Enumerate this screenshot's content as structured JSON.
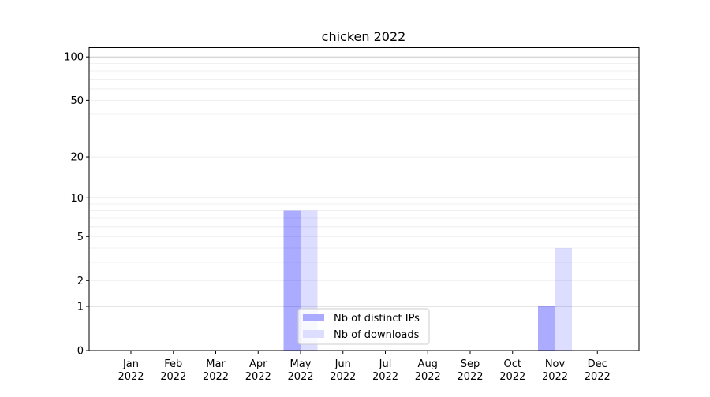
{
  "chart_data": {
    "type": "bar",
    "title": "chicken 2022",
    "xlabel": "",
    "ylabel": "",
    "y_scale": "log(1+y)",
    "ylim": [
      0,
      116
    ],
    "y_ticks": [
      0,
      1,
      2,
      5,
      10,
      20,
      50,
      100
    ],
    "y_tick_labels": [
      "0",
      "1",
      "2",
      "5",
      "10",
      "20",
      "50",
      "100"
    ],
    "grid": true,
    "categories": [
      "Jan\n2022",
      "Feb\n2022",
      "Mar\n2022",
      "Apr\n2022",
      "May\n2022",
      "Jun\n2022",
      "Jul\n2022",
      "Aug\n2022",
      "Sep\n2022",
      "Oct\n2022",
      "Nov\n2022",
      "Dec\n2022"
    ],
    "series": [
      {
        "name": "Nb of distinct IPs",
        "color": "#aaaaff",
        "values": [
          0,
          0,
          0,
          0,
          8,
          0,
          0,
          0,
          0,
          0,
          1,
          0
        ]
      },
      {
        "name": "Nb of downloads",
        "color": "#ddddff",
        "values": [
          0,
          0,
          0,
          0,
          8,
          0,
          0,
          0,
          0,
          0,
          4,
          0
        ]
      }
    ],
    "legend_position": "bottom-center"
  }
}
